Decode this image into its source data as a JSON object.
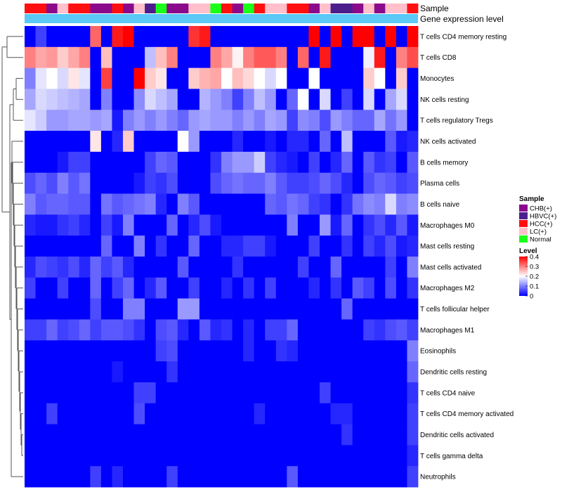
{
  "chart_data": {
    "type": "heatmap",
    "annotations": {
      "sample_label": "Sample",
      "expression_label": "Gene expression level"
    },
    "sample_groups": [
      {
        "name": "CHB(+)",
        "color": "#8B0A8C"
      },
      {
        "name": "HBVC(+)",
        "color": "#4B1E8C"
      },
      {
        "name": "HCC(+)",
        "color": "#FF1010"
      },
      {
        "name": "LC(+)",
        "color": "#FFC0CB"
      },
      {
        "name": "Normal",
        "color": "#19FF19"
      }
    ],
    "column_groups": [
      "HCC(+)",
      "HCC(+)",
      "CHB(+)",
      "LC(+)",
      "HCC(+)",
      "HCC(+)",
      "CHB(+)",
      "CHB(+)",
      "HCC(+)",
      "CHB(+)",
      "LC(+)",
      "HBVC(+)",
      "Normal",
      "CHB(+)",
      "CHB(+)",
      "LC(+)",
      "LC(+)",
      "Normal",
      "HCC(+)",
      "CHB(+)",
      "Normal",
      "HCC(+)",
      "LC(+)",
      "LC(+)",
      "HCC(+)",
      "HCC(+)",
      "CHB(+)",
      "LC(+)",
      "HBVC(+)",
      "HBVC(+)",
      "CHB(+)",
      "LC(+)",
      "CHB(+)",
      "LC(+)",
      "LC(+)",
      "HCC(+)"
    ],
    "rows": [
      "T cells CD4 memory resting",
      "T cells CD8",
      "Monocytes",
      "NK cells resting",
      "T cells regulatory  Tregs",
      "NK cells activated",
      "B cells memory",
      "Plasma cells",
      "B cells naive",
      "Macrophages M0",
      "Mast cells resting",
      "Mast cells activated",
      "Macrophages M2",
      "T cells follicular helper",
      "Macrophages M1",
      "Eosinophils",
      "Dendritic cells resting",
      "T cells CD4 naive",
      "T cells CD4 memory activated",
      "Dendritic cells activated",
      "T cells gamma delta",
      "Neutrophils"
    ],
    "values": [
      [
        0.0,
        0.05,
        0.0,
        0.0,
        0.0,
        0.0,
        0.32,
        0.0,
        0.38,
        0.4,
        0.0,
        0.0,
        0.0,
        0.0,
        0.0,
        0.36,
        0.38,
        0.0,
        0.0,
        0.0,
        0.0,
        0.0,
        0.0,
        0.0,
        0.0,
        0.0,
        0.42,
        0.0,
        0.4,
        0.0,
        0.42,
        0.42,
        0.0,
        0.42,
        0.0,
        0.42
      ],
      [
        0.3,
        0.27,
        0.28,
        0.24,
        0.27,
        0.3,
        0.0,
        0.25,
        0.0,
        0.0,
        0.0,
        0.15,
        0.25,
        0.3,
        0.0,
        0.0,
        0.0,
        0.3,
        0.27,
        0.21,
        0.3,
        0.33,
        0.33,
        0.3,
        0.0,
        0.32,
        0.0,
        0.38,
        0.0,
        0.0,
        0.0,
        0.19,
        0.38,
        0.0,
        0.3,
        0.34
      ],
      [
        0.1,
        0.18,
        0.2,
        0.17,
        0.22,
        0.18,
        0.0,
        0.35,
        0.0,
        0.0,
        0.4,
        0.24,
        0.22,
        0.0,
        0.0,
        0.24,
        0.26,
        0.27,
        0.2,
        0.25,
        0.23,
        0.2,
        0.17,
        0.2,
        0.0,
        0.0,
        0.2,
        0.0,
        0.0,
        0.0,
        0.0,
        0.24,
        0.2,
        0.0,
        0.24,
        0.0
      ],
      [
        0.13,
        0.17,
        0.16,
        0.15,
        0.14,
        0.13,
        0.0,
        0.1,
        0.0,
        0.0,
        0.11,
        0.17,
        0.15,
        0.13,
        0.0,
        0.0,
        0.14,
        0.12,
        0.1,
        0.05,
        0.1,
        0.15,
        0.12,
        0.0,
        0.08,
        0.2,
        0.0,
        0.17,
        0.0,
        0.05,
        0.0,
        0.17,
        0.0,
        0.13,
        0.17,
        0.0
      ],
      [
        0.18,
        0.16,
        0.12,
        0.12,
        0.13,
        0.13,
        0.12,
        0.13,
        0.02,
        0.1,
        0.12,
        0.1,
        0.12,
        0.1,
        0.08,
        0.12,
        0.13,
        0.12,
        0.12,
        0.1,
        0.12,
        0.1,
        0.13,
        0.12,
        0.05,
        0.11,
        0.1,
        0.06,
        0.12,
        0.1,
        0.08,
        0.08,
        0.13,
        0.09,
        0.12,
        0.0
      ],
      [
        0.0,
        0.0,
        0.0,
        0.0,
        0.0,
        0.0,
        0.22,
        0.0,
        0.03,
        0.24,
        0.0,
        0.0,
        0.0,
        0.0,
        0.2,
        0.12,
        0.0,
        0.0,
        0.0,
        0.03,
        0.0,
        0.0,
        0.02,
        0.0,
        0.03,
        0.03,
        0.0,
        0.08,
        0.0,
        0.15,
        0.0,
        0.0,
        0.0,
        0.07,
        0.02,
        0.03
      ],
      [
        0.0,
        0.0,
        0.0,
        0.02,
        0.05,
        0.05,
        0.0,
        0.0,
        0.0,
        0.0,
        0.0,
        0.05,
        0.08,
        0.07,
        0.0,
        0.0,
        0.0,
        0.04,
        0.1,
        0.12,
        0.12,
        0.16,
        0.05,
        0.03,
        0.02,
        0.0,
        0.05,
        0.0,
        0.03,
        0.08,
        0.0,
        0.07,
        0.04,
        0.05,
        0.0,
        0.07
      ],
      [
        0.06,
        0.08,
        0.06,
        0.1,
        0.07,
        0.09,
        0.0,
        0.0,
        0.0,
        0.0,
        0.02,
        0.05,
        0.04,
        0.06,
        0.0,
        0.0,
        0.0,
        0.06,
        0.08,
        0.09,
        0.08,
        0.08,
        0.1,
        0.07,
        0.05,
        0.05,
        0.06,
        0.08,
        0.06,
        0.03,
        0.0,
        0.06,
        0.08,
        0.07,
        0.05,
        0.06
      ],
      [
        0.1,
        0.07,
        0.08,
        0.08,
        0.07,
        0.07,
        0.0,
        0.09,
        0.07,
        0.08,
        0.09,
        0.1,
        0.03,
        0.0,
        0.1,
        0.07,
        0.0,
        0.0,
        0.0,
        0.0,
        0.0,
        0.0,
        0.08,
        0.07,
        0.09,
        0.08,
        0.05,
        0.04,
        0.0,
        0.04,
        0.09,
        0.11,
        0.1,
        0.17,
        0.1,
        0.11
      ],
      [
        0.03,
        0.02,
        0.02,
        0.04,
        0.05,
        0.03,
        0.0,
        0.05,
        0.02,
        0.1,
        0.0,
        0.0,
        0.0,
        0.08,
        0.0,
        0.03,
        0.06,
        0.02,
        0.0,
        0.0,
        0.0,
        0.0,
        0.0,
        0.0,
        0.1,
        0.0,
        0.0,
        0.12,
        0.02,
        0.08,
        0.0,
        0.04,
        0.06,
        0.03,
        0.07,
        0.02
      ],
      [
        0.0,
        0.0,
        0.0,
        0.0,
        0.0,
        0.0,
        0.0,
        0.08,
        0.0,
        0.0,
        0.1,
        0.0,
        0.04,
        0.0,
        0.0,
        0.08,
        0.0,
        0.0,
        0.03,
        0.03,
        0.05,
        0.05,
        0.02,
        0.0,
        0.0,
        0.0,
        0.05,
        0.0,
        0.0,
        0.04,
        0.0,
        0.05,
        0.03,
        0.06,
        0.02,
        0.03
      ],
      [
        0.03,
        0.06,
        0.05,
        0.04,
        0.06,
        0.03,
        0.08,
        0.05,
        0.07,
        0.03,
        0.0,
        0.0,
        0.0,
        0.0,
        0.07,
        0.0,
        0.0,
        0.0,
        0.0,
        0.04,
        0.0,
        0.0,
        0.0,
        0.0,
        0.0,
        0.05,
        0.0,
        0.0,
        0.08,
        0.0,
        0.0,
        0.0,
        0.0,
        0.05,
        0.0,
        0.1
      ],
      [
        0.05,
        0.0,
        0.0,
        0.05,
        0.0,
        0.0,
        0.08,
        0.0,
        0.05,
        0.08,
        0.0,
        0.03,
        0.07,
        0.0,
        0.0,
        0.05,
        0.0,
        0.0,
        0.03,
        0.0,
        0.04,
        0.0,
        0.05,
        0.0,
        0.0,
        0.0,
        0.03,
        0.0,
        0.04,
        0.0,
        0.07,
        0.05,
        0.0,
        0.06,
        0.0,
        0.04
      ],
      [
        0.0,
        0.0,
        0.0,
        0.0,
        0.0,
        0.0,
        0.06,
        0.0,
        0.0,
        0.1,
        0.1,
        0.0,
        0.0,
        0.0,
        0.12,
        0.12,
        0.0,
        0.0,
        0.0,
        0.0,
        0.0,
        0.0,
        0.0,
        0.0,
        0.0,
        0.0,
        0.0,
        0.0,
        0.0,
        0.08,
        0.0,
        0.0,
        0.0,
        0.0,
        0.0,
        0.0
      ],
      [
        0.05,
        0.05,
        0.08,
        0.05,
        0.06,
        0.08,
        0.05,
        0.07,
        0.07,
        0.06,
        0.04,
        0.0,
        0.06,
        0.07,
        0.03,
        0.0,
        0.07,
        0.03,
        0.04,
        0.0,
        0.03,
        0.0,
        0.05,
        0.05,
        0.08,
        0.0,
        0.0,
        0.0,
        0.0,
        0.0,
        0.0,
        0.05,
        0.04,
        0.06,
        0.07,
        0.05
      ],
      [
        0.0,
        0.0,
        0.0,
        0.0,
        0.0,
        0.0,
        0.0,
        0.0,
        0.0,
        0.0,
        0.0,
        0.0,
        0.05,
        0.06,
        0.0,
        0.0,
        0.0,
        0.0,
        0.0,
        0.0,
        0.03,
        0.0,
        0.0,
        0.04,
        0.03,
        0.0,
        0.0,
        0.0,
        0.0,
        0.0,
        0.0,
        0.0,
        0.0,
        0.0,
        0.0,
        0.1
      ],
      [
        0.0,
        0.0,
        0.0,
        0.0,
        0.0,
        0.0,
        0.0,
        0.0,
        0.02,
        0.0,
        0.0,
        0.0,
        0.0,
        0.04,
        0.0,
        0.0,
        0.0,
        0.0,
        0.0,
        0.0,
        0.0,
        0.0,
        0.0,
        0.0,
        0.0,
        0.0,
        0.0,
        0.0,
        0.0,
        0.0,
        0.0,
        0.0,
        0.0,
        0.0,
        0.0,
        0.08
      ],
      [
        0.0,
        0.0,
        0.0,
        0.0,
        0.0,
        0.0,
        0.0,
        0.0,
        0.0,
        0.0,
        0.05,
        0.05,
        0.0,
        0.0,
        0.0,
        0.0,
        0.0,
        0.0,
        0.0,
        0.0,
        0.0,
        0.0,
        0.0,
        0.0,
        0.0,
        0.0,
        0.0,
        0.05,
        0.0,
        0.0,
        0.0,
        0.0,
        0.0,
        0.0,
        0.0,
        0.04
      ],
      [
        0.0,
        0.0,
        0.05,
        0.0,
        0.0,
        0.0,
        0.0,
        0.0,
        0.0,
        0.0,
        0.06,
        0.0,
        0.0,
        0.0,
        0.0,
        0.0,
        0.0,
        0.0,
        0.0,
        0.0,
        0.0,
        0.03,
        0.0,
        0.0,
        0.0,
        0.0,
        0.0,
        0.0,
        0.03,
        0.03,
        0.0,
        0.0,
        0.0,
        0.0,
        0.0,
        0.05
      ],
      [
        0.0,
        0.0,
        0.0,
        0.0,
        0.0,
        0.0,
        0.0,
        0.0,
        0.0,
        0.0,
        0.0,
        0.0,
        0.0,
        0.0,
        0.0,
        0.0,
        0.0,
        0.0,
        0.0,
        0.0,
        0.0,
        0.0,
        0.0,
        0.0,
        0.0,
        0.0,
        0.0,
        0.0,
        0.0,
        0.04,
        0.0,
        0.0,
        0.0,
        0.0,
        0.0,
        0.05
      ],
      [
        0.0,
        0.0,
        0.0,
        0.0,
        0.0,
        0.0,
        0.0,
        0.0,
        0.0,
        0.0,
        0.0,
        0.0,
        0.0,
        0.0,
        0.0,
        0.0,
        0.0,
        0.0,
        0.0,
        0.0,
        0.0,
        0.0,
        0.0,
        0.0,
        0.0,
        0.0,
        0.0,
        0.0,
        0.0,
        0.0,
        0.0,
        0.0,
        0.0,
        0.0,
        0.0,
        0.03
      ],
      [
        0.0,
        0.0,
        0.0,
        0.0,
        0.0,
        0.0,
        0.05,
        0.0,
        0.03,
        0.0,
        0.0,
        0.0,
        0.0,
        0.05,
        0.0,
        0.0,
        0.0,
        0.0,
        0.0,
        0.0,
        0.0,
        0.0,
        0.0,
        0.0,
        0.07,
        0.0,
        0.0,
        0.0,
        0.0,
        0.0,
        0.0,
        0.0,
        0.0,
        0.0,
        0.0,
        0.05
      ]
    ],
    "color_scale": {
      "title": "Level",
      "min": 0,
      "max": 0.4,
      "ticks": [
        {
          "value": 0,
          "label": "0"
        },
        {
          "value": 0.1,
          "label": "0.1"
        },
        {
          "value": 0.2,
          "label": "0.2"
        },
        {
          "value": 0.3,
          "label": "0.3"
        },
        {
          "value": 0.4,
          "label": "0.4"
        }
      ],
      "low_color": "#0000FF",
      "mid_color": "#FFFFFF",
      "high_color": "#FF0000"
    },
    "legend": {
      "sample_title": "Sample",
      "placement": "right"
    },
    "expression_bar_color": "#5BC8F5"
  }
}
